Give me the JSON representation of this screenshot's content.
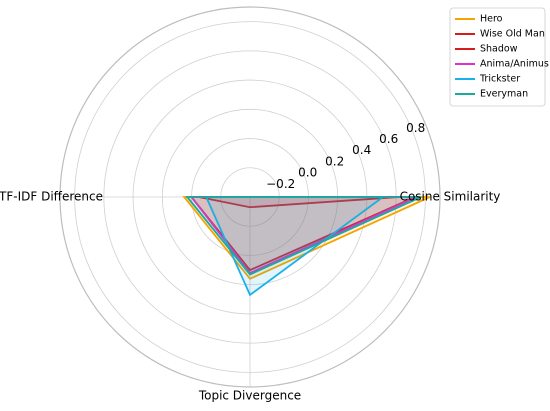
{
  "chart_data": {
    "type": "radar",
    "axes": [
      "Cosine Similarity",
      "TF-IDF Difference",
      "Topic Divergence"
    ],
    "rticks": [
      -0.2,
      0.0,
      0.2,
      0.4,
      0.6,
      0.8
    ],
    "rtick_labels": [
      "−0.2",
      "0.0",
      "0.2",
      "0.4",
      "0.6",
      "0.8"
    ],
    "rlim": [
      -0.4,
      0.9
    ],
    "grid": true,
    "legend_position": "top-right",
    "series": [
      {
        "name": "Hero",
        "color": "#f5a300",
        "values": [
          0.83,
          0.05,
          0.16
        ]
      },
      {
        "name": "Wise Old Man",
        "color": "#d81b1b",
        "values": [
          0.73,
          0.0,
          0.1
        ]
      },
      {
        "name": "Shadow",
        "color": "#d81b1b",
        "values": [
          0.62,
          -0.05,
          -0.33
        ]
      },
      {
        "name": "Anima/Animus",
        "color": "#e030d0",
        "values": [
          0.74,
          0.0,
          0.12
        ]
      },
      {
        "name": "Trickster",
        "color": "#1ab0ea",
        "values": [
          0.51,
          -0.1,
          0.27
        ]
      },
      {
        "name": "Everyman",
        "color": "#1aaa9a",
        "values": [
          0.77,
          0.03,
          0.13
        ]
      }
    ]
  }
}
